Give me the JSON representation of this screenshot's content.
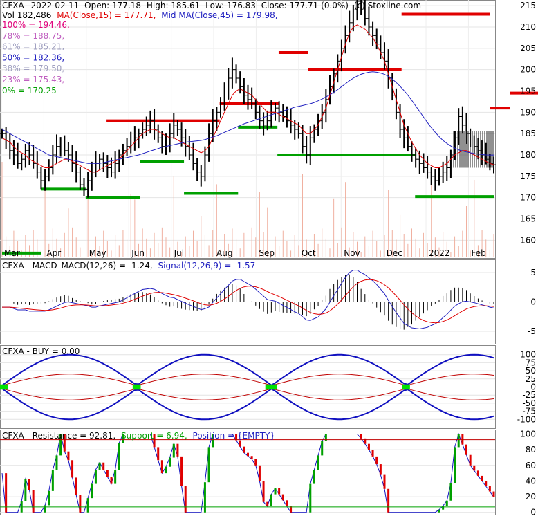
{
  "chart_data": [
    {
      "type": "ohlc",
      "panel": "price",
      "header": {
        "line1": {
          "symbol": "CFXA",
          "date": "2022-02-11",
          "open": "Open: 177.18",
          "high": "High: 185.61",
          "low": "Low: 176.83",
          "close": "Close: 177.71 (0.0%)",
          "source": "(c) Stoxline.com"
        },
        "line2": {
          "vol": "Vol 182,486",
          "ma15": "MA(Close,15) = 177.71,",
          "ma45": "Mid MA(Close,45) = 179.98,"
        }
      },
      "fib_levels": [
        {
          "label": "100% = 194.46,",
          "value": 194.46,
          "color": "#e0007a"
        },
        {
          "label": "78% = 188.75,",
          "value": 188.75,
          "color": "#c060c0"
        },
        {
          "label": "61% = 185.21,",
          "value": 185.21,
          "color": "#a0a0c0"
        },
        {
          "label": "50% = 182.36,",
          "value": 182.36,
          "color": "#2020c0"
        },
        {
          "label": "38% = 179.50,",
          "value": 179.5,
          "color": "#a0a0c0"
        },
        {
          "label": "23% = 175.43,",
          "value": 175.43,
          "color": "#c060c0"
        },
        {
          "label": "0% = 170.25",
          "value": 170.25,
          "color": "#00a000"
        }
      ],
      "y_ticks": [
        160,
        165,
        170,
        175,
        180,
        185,
        190,
        195,
        200,
        205,
        210,
        215
      ],
      "ylim": [
        156,
        216
      ],
      "x_labels": [
        "Mar",
        "Apr",
        "May",
        "Jun",
        "Jul",
        "Aug",
        "Sep",
        "Oct",
        "Nov",
        "Dec",
        "2022",
        "Feb"
      ],
      "close": [
        185,
        183,
        181,
        180,
        178,
        179,
        181,
        180,
        178,
        176,
        174,
        175,
        177,
        180,
        182,
        183,
        181,
        180,
        178,
        176,
        173,
        172,
        174,
        176,
        178,
        179,
        178,
        177,
        176,
        178,
        180,
        181,
        182,
        183,
        184,
        185,
        186,
        187,
        188,
        186,
        184,
        182,
        183,
        185,
        187,
        186,
        184,
        182,
        180,
        178,
        176,
        175,
        180,
        185,
        188,
        190,
        192,
        195,
        198,
        200,
        198,
        196,
        194,
        193,
        192,
        190,
        188,
        187,
        188,
        190,
        191,
        190,
        189,
        188,
        187,
        186,
        185,
        182,
        180,
        184,
        186,
        188,
        190,
        193,
        196,
        199,
        202,
        205,
        208,
        211,
        214,
        216,
        214,
        212,
        210,
        208,
        206,
        204,
        202,
        198,
        194,
        190,
        186,
        184,
        182,
        180,
        179,
        178,
        177,
        176,
        175,
        174,
        175,
        176,
        177,
        180,
        184,
        189,
        187,
        185,
        183,
        182,
        181,
        180,
        179,
        178,
        177.71
      ],
      "ma15": [
        184,
        183.5,
        183,
        182,
        181,
        180.5,
        180,
        179,
        178.5,
        178,
        177.5,
        177,
        177,
        177.5,
        178,
        178.5,
        179,
        179,
        178.5,
        178,
        177.5,
        177,
        176.5,
        176,
        176,
        176.5,
        177,
        177.5,
        178,
        178.5,
        179,
        180,
        181,
        182,
        183,
        184,
        185,
        185.5,
        186,
        186,
        185.5,
        185,
        184.5,
        184,
        184,
        183.5,
        183,
        182.5,
        182,
        181.5,
        181,
        180.5,
        181,
        182,
        184,
        186,
        188,
        190,
        192,
        194,
        195,
        195.5,
        195,
        194.5,
        194,
        193,
        192,
        191,
        190,
        190,
        190,
        189.5,
        189,
        188.5,
        188,
        187.5,
        187,
        186,
        185,
        185,
        186,
        187,
        189,
        191,
        194,
        197,
        200,
        203,
        206,
        208.5,
        210,
        210.5,
        210,
        209.5,
        208.5,
        207.5,
        206,
        204,
        202,
        199,
        196,
        193,
        190,
        187,
        185,
        183,
        181.5,
        180,
        179,
        178,
        177.5,
        177,
        177,
        177.5,
        178,
        179,
        180,
        180.5,
        181,
        181,
        180.5,
        180,
        179.5,
        179,
        178.5,
        178,
        177.71
      ],
      "ma45": [
        186,
        185.5,
        185,
        184.5,
        184,
        183.5,
        183,
        182.5,
        182,
        181.5,
        181,
        180.5,
        180,
        179.8,
        179.6,
        179.4,
        179.2,
        179,
        178.8,
        178.6,
        178.4,
        178.2,
        178,
        178,
        178,
        178,
        178.2,
        178.4,
        178.6,
        178.8,
        179,
        179.2,
        179.4,
        179.6,
        179.8,
        180,
        180.3,
        180.6,
        180.9,
        181.2,
        181.5,
        181.8,
        182,
        182.2,
        182.4,
        182.6,
        182.8,
        183,
        183.1,
        183.2,
        183.3,
        183.4,
        183.6,
        183.9,
        184.2,
        184.5,
        184.9,
        185.3,
        185.7,
        186.1,
        186.5,
        186.9,
        187.3,
        187.6,
        187.9,
        188.2,
        188.5,
        188.8,
        189.1,
        189.4,
        189.7,
        190,
        190.3,
        190.6,
        190.9,
        191.2,
        191.4,
        191.6,
        191.8,
        192,
        192.3,
        192.7,
        193.1,
        193.6,
        194.1,
        194.7,
        195.3,
        196,
        196.7,
        197.4,
        198,
        198.5,
        198.9,
        199.2,
        199.4,
        199.5,
        199.4,
        199.2,
        198.9,
        198.4,
        197.8,
        197,
        196.1,
        195.1,
        194,
        192.8,
        191.5,
        190.2,
        188.9,
        187.6,
        186.4,
        185.3,
        184.3,
        183.4,
        182.7,
        182.1,
        181.6,
        181.2,
        180.9,
        180.7,
        180.5,
        180.3,
        180.2,
        180.1,
        180,
        179.99,
        179.98
      ],
      "resistance_segments": [
        {
          "x0": 0.1,
          "x1": 0.33,
          "y": 188
        },
        {
          "x0": 0.33,
          "x1": 0.45,
          "y": 192
        },
        {
          "x0": 0.45,
          "x1": 0.51,
          "y": 204
        },
        {
          "x0": 0.51,
          "x1": 0.7,
          "y": 200
        },
        {
          "x0": 0.7,
          "x1": 0.88,
          "y": 213
        },
        {
          "x0": 0.88,
          "x1": 0.92,
          "y": 191
        },
        {
          "x0": 0.92,
          "x1": 1.0,
          "y": 194.5
        }
      ],
      "support_segments": [
        {
          "x0": 0.0,
          "x1": 0.08,
          "y": 157
        },
        {
          "x0": 0.08,
          "x1": 0.17,
          "y": 172
        },
        {
          "x0": 0.17,
          "x1": 0.28,
          "y": 170
        },
        {
          "x0": 0.28,
          "x1": 0.37,
          "y": 178.5
        },
        {
          "x0": 0.37,
          "x1": 0.48,
          "y": 171
        },
        {
          "x0": 0.48,
          "x1": 0.56,
          "y": 186.5
        },
        {
          "x0": 0.56,
          "x1": 0.84,
          "y": 180
        },
        {
          "x0": 0.84,
          "x1": 1.0,
          "y": 170.25
        }
      ]
    },
    {
      "type": "line",
      "panel": "macd",
      "title": {
        "name": "CFXA - MACD",
        "params": "MACD(12,26) = -1.24,",
        "signal": "Signal(12,26,9) = -1.57"
      },
      "y_ticks": [
        5,
        0,
        -5
      ],
      "ylim": [
        -7,
        7
      ]
    },
    {
      "type": "line",
      "panel": "buy",
      "title": {
        "name": "CFXA - BUY = 0.00"
      },
      "y_ticks": [
        100,
        75,
        50,
        25,
        0,
        -25,
        -50,
        -75,
        -100
      ],
      "ylim": [
        -125,
        125
      ]
    },
    {
      "type": "line",
      "panel": "resistance",
      "title": {
        "name": "CFXA - Resistance = 92.81,",
        "support": "Support = 6.94,",
        "position": "Position = {EMPTY}"
      },
      "y_ticks": [
        100,
        80,
        60,
        40,
        20,
        0
      ],
      "ylim": [
        -2,
        104
      ]
    }
  ]
}
